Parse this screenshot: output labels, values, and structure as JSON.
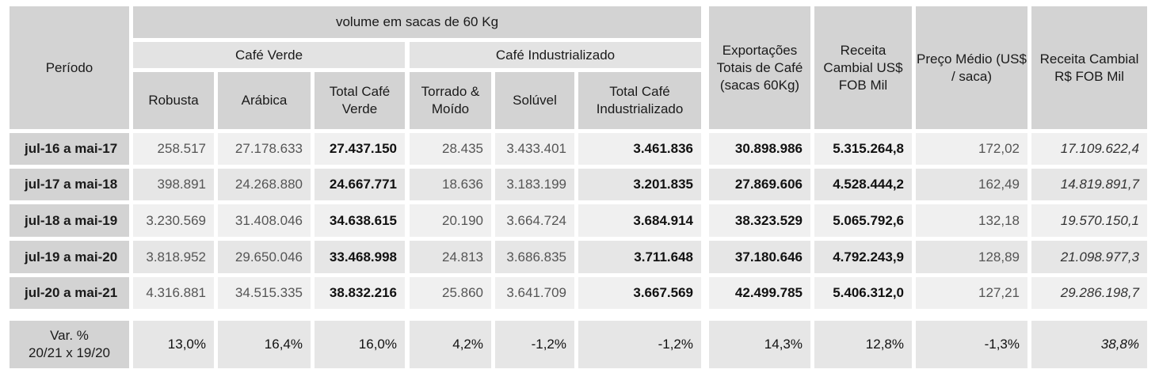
{
  "header": {
    "periodo": "Período",
    "volume": "volume em sacas de 60 Kg",
    "cafe_verde": "Café Verde",
    "cafe_industrializado": "Café Industrializado",
    "robusta": "Robusta",
    "arabica": "Arábica",
    "total_verde": "Total Café Verde",
    "torrado": "Torrado & Moído",
    "soluvel": "Solúvel",
    "total_industrializado": "Total Café Industrializado",
    "exportacoes": "Exportações Totais de Café (sacas 60Kg)",
    "receita_usd": "Receita Cambial US$ FOB Mil",
    "preco_medio": "Preço Médio (US$ / saca)",
    "receita_brl": "Receita Cambial R$ FOB Mil"
  },
  "rows": [
    {
      "periodo": "jul-16 a mai-17",
      "robusta": "258.517",
      "arabica": "27.178.633",
      "total_verde": "27.437.150",
      "torrado": "28.435",
      "soluvel": "3.433.401",
      "total_ind": "3.461.836",
      "exportacoes": "30.898.986",
      "receita_usd": "5.315.264,8",
      "preco": "172,02",
      "receita_brl": "17.109.622,4"
    },
    {
      "periodo": "jul-17 a mai-18",
      "robusta": "398.891",
      "arabica": "24.268.880",
      "total_verde": "24.667.771",
      "torrado": "18.636",
      "soluvel": "3.183.199",
      "total_ind": "3.201.835",
      "exportacoes": "27.869.606",
      "receita_usd": "4.528.444,2",
      "preco": "162,49",
      "receita_brl": "14.819.891,7"
    },
    {
      "periodo": "jul-18 a mai-19",
      "robusta": "3.230.569",
      "arabica": "31.408.046",
      "total_verde": "34.638.615",
      "torrado": "20.190",
      "soluvel": "3.664.724",
      "total_ind": "3.684.914",
      "exportacoes": "38.323.529",
      "receita_usd": "5.065.792,6",
      "preco": "132,18",
      "receita_brl": "19.570.150,1"
    },
    {
      "periodo": "jul-19 a mai-20",
      "robusta": "3.818.952",
      "arabica": "29.650.046",
      "total_verde": "33.468.998",
      "torrado": "24.813",
      "soluvel": "3.686.835",
      "total_ind": "3.711.648",
      "exportacoes": "37.180.646",
      "receita_usd": "4.792.243,9",
      "preco": "128,89",
      "receita_brl": "21.098.977,3"
    },
    {
      "periodo": "jul-20 a mai-21",
      "robusta": "4.316.881",
      "arabica": "34.515.335",
      "total_verde": "38.832.216",
      "torrado": "25.860",
      "soluvel": "3.641.709",
      "total_ind": "3.667.569",
      "exportacoes": "42.499.785",
      "receita_usd": "5.406.312,0",
      "preco": "127,21",
      "receita_brl": "29.286.198,7"
    }
  ],
  "variation": {
    "label_line1": "Var. %",
    "label_line2": "20/21 x 19/20",
    "robusta": "13,0%",
    "arabica": "16,4%",
    "total_verde": "16,0%",
    "torrado": "4,2%",
    "soluvel": "-1,2%",
    "total_ind": "-1,2%",
    "exportacoes": "14,3%",
    "receita_usd": "12,8%",
    "preco": "-1,3%",
    "receita_brl": "38,8%"
  }
}
